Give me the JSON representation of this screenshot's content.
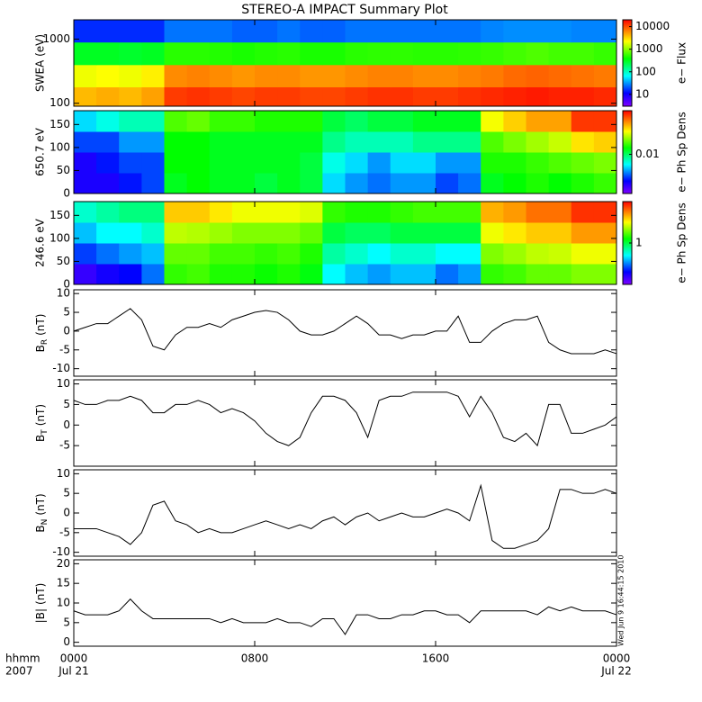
{
  "title": "STEREO-A IMPACT Summary Plot",
  "timestamp": "Wed Jun  9 16:44:15 2010",
  "x_axis": {
    "xlim": [
      0,
      24
    ],
    "xticks": [
      {
        "value": 0,
        "label": "0000"
      },
      {
        "value": 8,
        "label": "0800"
      },
      {
        "value": 16,
        "label": "1600"
      },
      {
        "value": 24,
        "label": "0000"
      }
    ],
    "dates": [
      {
        "value": 0,
        "label": "Jul 21"
      },
      {
        "value": 24,
        "label": "Jul 22"
      }
    ],
    "row_labels": [
      "hhmm",
      "2007"
    ]
  },
  "time_bins": [
    0,
    1,
    2,
    3,
    4,
    5,
    6,
    7,
    8,
    9,
    10,
    11,
    12,
    13,
    14,
    15,
    16,
    17,
    18,
    19,
    20,
    21,
    22,
    23,
    24
  ],
  "time_hours": [
    0,
    0.5,
    1,
    1.5,
    2,
    2.5,
    3,
    3.5,
    4,
    4.5,
    5,
    5.5,
    6,
    6.5,
    7,
    7.5,
    8,
    8.5,
    9,
    9.5,
    10,
    10.5,
    11,
    11.5,
    12,
    12.5,
    13,
    13.5,
    14,
    14.5,
    15,
    15.5,
    16,
    16.5,
    17,
    17.5,
    18,
    18.5,
    19,
    19.5,
    20,
    20.5,
    21,
    21.5,
    22,
    22.5,
    23,
    23.5,
    24
  ],
  "chart_data": [
    {
      "type": "spectrogram",
      "ylabel": "SWEA (eV)",
      "ylog": true,
      "ylim": [
        90,
        2000
      ],
      "yticks": [
        100,
        1000
      ],
      "y_bins": [
        90,
        180,
        400,
        900,
        2000
      ],
      "colorbar": {
        "label": "e− Flux",
        "log": true,
        "zlim": [
          3,
          20000
        ],
        "zticks": [
          10,
          100,
          1000,
          10000
        ]
      },
      "z": [
        [
          4000,
          4500,
          4000,
          5000,
          12000,
          13000,
          12000,
          11000,
          12000,
          12000,
          11000,
          11000,
          12000,
          13000,
          13000,
          12000,
          12000,
          13000,
          14000,
          15000,
          16000,
          15000,
          15000,
          14000
        ],
        [
          2000,
          2200,
          2000,
          2500,
          6000,
          6500,
          6000,
          5500,
          6000,
          6000,
          5500,
          5500,
          6000,
          6500,
          6500,
          6000,
          6000,
          6500,
          7000,
          8000,
          8500,
          8000,
          7500,
          7000
        ],
        [
          300,
          300,
          280,
          300,
          500,
          500,
          480,
          450,
          480,
          500,
          450,
          450,
          500,
          520,
          520,
          500,
          500,
          520,
          550,
          600,
          650,
          600,
          600,
          550
        ],
        [
          15,
          15,
          15,
          15,
          25,
          25,
          25,
          22,
          22,
          25,
          22,
          22,
          25,
          25,
          25,
          25,
          25,
          25,
          28,
          30,
          30,
          30,
          28,
          28
        ]
      ]
    },
    {
      "type": "spectrogram",
      "ylabel": "650.7 eV",
      "ylog": false,
      "ylim": [
        0,
        180
      ],
      "yticks": [
        0,
        50,
        100,
        150
      ],
      "y_bins": [
        0,
        45,
        90,
        135,
        180
      ],
      "colorbar": {
        "label": "e− Ph Sp Dens",
        "log": true,
        "zlim": [
          0.002,
          0.06
        ],
        "zticks": [
          0.01
        ]
      },
      "z": [
        [
          0.003,
          0.003,
          0.0035,
          0.004,
          0.012,
          0.013,
          0.012,
          0.012,
          0.011,
          0.012,
          0.011,
          0.006,
          0.005,
          0.0045,
          0.005,
          0.005,
          0.004,
          0.0045,
          0.012,
          0.013,
          0.014,
          0.013,
          0.014,
          0.015
        ],
        [
          0.003,
          0.0035,
          0.004,
          0.004,
          0.013,
          0.013,
          0.012,
          0.012,
          0.012,
          0.012,
          0.011,
          0.007,
          0.006,
          0.005,
          0.006,
          0.006,
          0.005,
          0.005,
          0.014,
          0.014,
          0.015,
          0.016,
          0.017,
          0.018
        ],
        [
          0.004,
          0.004,
          0.005,
          0.005,
          0.013,
          0.013,
          0.012,
          0.012,
          0.012,
          0.012,
          0.012,
          0.009,
          0.008,
          0.008,
          0.008,
          0.009,
          0.009,
          0.009,
          0.016,
          0.018,
          0.02,
          0.022,
          0.028,
          0.03
        ],
        [
          0.006,
          0.007,
          0.008,
          0.008,
          0.016,
          0.017,
          0.015,
          0.015,
          0.014,
          0.014,
          0.014,
          0.011,
          0.01,
          0.011,
          0.011,
          0.012,
          0.012,
          0.012,
          0.025,
          0.03,
          0.035,
          0.035,
          0.05,
          0.05
        ]
      ]
    },
    {
      "type": "spectrogram",
      "ylabel": "246.6 eV",
      "ylog": false,
      "ylim": [
        0,
        180
      ],
      "yticks": [
        0,
        50,
        100,
        150
      ],
      "y_bins": [
        0,
        45,
        90,
        135,
        180
      ],
      "colorbar": {
        "label": "e− Ph Sp Dens",
        "log": true,
        "zlim": [
          0.1,
          10
        ],
        "zticks": [
          1
        ]
      },
      "z": [
        [
          0.15,
          0.18,
          0.2,
          0.3,
          1.5,
          1.6,
          1.4,
          1.4,
          1.3,
          1.4,
          1.2,
          0.5,
          0.4,
          0.35,
          0.4,
          0.4,
          0.3,
          0.35,
          1.5,
          1.6,
          1.8,
          1.8,
          2,
          2
        ],
        [
          0.25,
          0.3,
          0.35,
          0.4,
          1.8,
          1.8,
          1.6,
          1.6,
          1.5,
          1.6,
          1.4,
          0.7,
          0.6,
          0.5,
          0.6,
          0.6,
          0.5,
          0.5,
          2,
          2.2,
          2.5,
          2.6,
          3,
          3
        ],
        [
          0.4,
          0.5,
          0.5,
          0.6,
          2.5,
          2.4,
          2.2,
          2,
          2,
          2,
          1.8,
          1,
          0.9,
          0.9,
          1,
          1,
          1,
          1,
          3,
          3.5,
          4,
          4,
          5,
          5
        ],
        [
          0.6,
          0.7,
          0.8,
          0.8,
          4,
          4,
          3.5,
          3,
          3,
          3,
          2.8,
          1.5,
          1.4,
          1.4,
          1.5,
          1.6,
          1.6,
          1.6,
          4.5,
          5,
          6,
          6,
          8,
          8
        ]
      ]
    },
    {
      "type": "line",
      "ylabel": {
        "symbol": "B",
        "subscript": "R",
        "unit": "(nT)"
      },
      "ylim": [
        -12,
        11
      ],
      "yticks": [
        -10,
        -5,
        0,
        5,
        10
      ],
      "color": "#000000",
      "values": [
        0,
        1,
        2,
        2,
        4,
        6,
        3,
        -4,
        -5,
        -1,
        1,
        1,
        2,
        1,
        3,
        4,
        5,
        5.5,
        5,
        3,
        0,
        -1,
        -1,
        0,
        2,
        4,
        2,
        -1,
        -1,
        -2,
        -1,
        -1,
        0,
        0,
        4,
        -3,
        -3,
        0,
        2,
        3,
        3,
        4,
        -3,
        -5,
        -6,
        -6,
        -6,
        -5,
        -6
      ]
    },
    {
      "type": "line",
      "ylabel": {
        "symbol": "B",
        "subscript": "T",
        "unit": "(nT)"
      },
      "ylim": [
        -10,
        11
      ],
      "yticks": [
        -5,
        0,
        5,
        10
      ],
      "color": "#000000",
      "values": [
        6,
        5,
        5,
        6,
        6,
        7,
        6,
        3,
        3,
        5,
        5,
        6,
        5,
        3,
        4,
        3,
        1,
        -2,
        -4,
        -5,
        -3,
        3,
        7,
        7,
        6,
        3,
        -3,
        6,
        7,
        7,
        8,
        8,
        8,
        8,
        7,
        2,
        7,
        3,
        -3,
        -4,
        -2,
        -5,
        5,
        5,
        -2,
        -2,
        -1,
        0,
        2
      ]
    },
    {
      "type": "line",
      "ylabel": {
        "symbol": "B",
        "subscript": "N",
        "unit": "(nT)"
      },
      "ylim": [
        -11,
        11
      ],
      "yticks": [
        -10,
        -5,
        0,
        5,
        10
      ],
      "color": "#000000",
      "values": [
        -4,
        -4,
        -4,
        -5,
        -6,
        -8,
        -5,
        2,
        3,
        -2,
        -3,
        -5,
        -4,
        -5,
        -5,
        -4,
        -3,
        -2,
        -3,
        -4,
        -3,
        -4,
        -2,
        -1,
        -3,
        -1,
        0,
        -2,
        -1,
        0,
        -1,
        -1,
        0,
        1,
        0,
        -2,
        7,
        -7,
        -9,
        -9,
        -8,
        -7,
        -4,
        6,
        6,
        5,
        5,
        6,
        5
      ]
    },
    {
      "type": "line",
      "ylabel": {
        "symbol": "|B|",
        "unit": "(nT)"
      },
      "ylim": [
        -1,
        21
      ],
      "yticks": [
        0,
        5,
        10,
        15,
        20
      ],
      "color": "#000000",
      "values": [
        8,
        7,
        7,
        7,
        8,
        11,
        8,
        6,
        6,
        6,
        6,
        6,
        6,
        5,
        6,
        5,
        5,
        5,
        6,
        5,
        5,
        4,
        6,
        6,
        2,
        7,
        7,
        6,
        6,
        7,
        7,
        8,
        8,
        7,
        7,
        5,
        8,
        8,
        8,
        8,
        8,
        7,
        9,
        8,
        9,
        8,
        8,
        8,
        7
      ]
    }
  ]
}
